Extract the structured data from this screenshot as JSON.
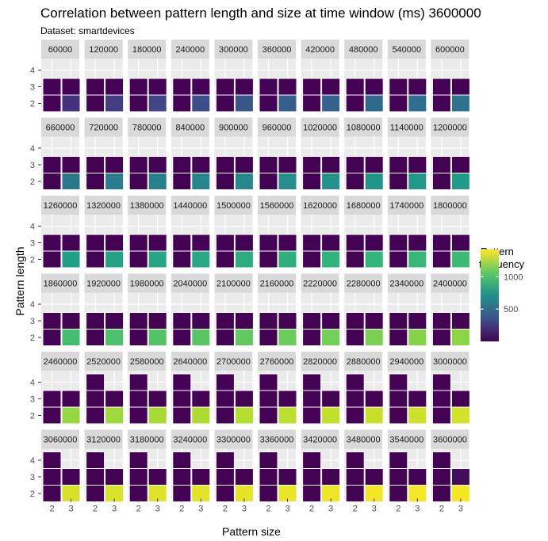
{
  "chart_data": {
    "type": "heatmap",
    "title": "Correlation between pattern length and size at time window (ms) 3600000",
    "subtitle": "Dataset: smartdevices",
    "xlabel": "Pattern size",
    "ylabel": "Pattern length",
    "x_ticks": [
      "2",
      "3"
    ],
    "y_ticks": [
      "2",
      "3",
      "4"
    ],
    "legend": {
      "title": [
        "Pattern",
        "frequency"
      ],
      "ticks": [
        500,
        1000
      ],
      "range": [
        0,
        1420
      ],
      "colormap": "viridis",
      "placement": "right"
    },
    "facets": [
      "60000",
      "120000",
      "180000",
      "240000",
      "300000",
      "360000",
      "420000",
      "480000",
      "540000",
      "600000",
      "660000",
      "720000",
      "780000",
      "840000",
      "900000",
      "960000",
      "1020000",
      "1080000",
      "1140000",
      "1200000",
      "1260000",
      "1320000",
      "1380000",
      "1440000",
      "1500000",
      "1560000",
      "1620000",
      "1680000",
      "1740000",
      "1800000",
      "1860000",
      "1920000",
      "1980000",
      "2040000",
      "2100000",
      "2160000",
      "2220000",
      "2280000",
      "2340000",
      "2400000",
      "2460000",
      "2520000",
      "2580000",
      "2640000",
      "2700000",
      "2760000",
      "2820000",
      "2880000",
      "2940000",
      "3000000",
      "3060000",
      "3120000",
      "3180000",
      "3240000",
      "3300000",
      "3360000",
      "3420000",
      "3480000",
      "3540000",
      "3600000"
    ],
    "cells_note": "per facet: [size, length, frequency]",
    "facet_values": [
      [
        [
          2,
          3,
          5
        ],
        [
          3,
          3,
          5
        ],
        [
          2,
          2,
          5
        ],
        [
          3,
          2,
          200
        ]
      ],
      [
        [
          2,
          3,
          5
        ],
        [
          3,
          3,
          5
        ],
        [
          2,
          2,
          5
        ],
        [
          3,
          2,
          260
        ]
      ],
      [
        [
          2,
          3,
          5
        ],
        [
          3,
          3,
          5
        ],
        [
          2,
          2,
          5
        ],
        [
          3,
          2,
          300
        ]
      ],
      [
        [
          2,
          3,
          5
        ],
        [
          3,
          3,
          5
        ],
        [
          2,
          2,
          5
        ],
        [
          3,
          2,
          340
        ]
      ],
      [
        [
          2,
          3,
          5
        ],
        [
          3,
          3,
          5
        ],
        [
          2,
          2,
          5
        ],
        [
          3,
          2,
          380
        ]
      ],
      [
        [
          2,
          3,
          5
        ],
        [
          3,
          3,
          5
        ],
        [
          2,
          2,
          5
        ],
        [
          3,
          2,
          420
        ]
      ],
      [
        [
          2,
          3,
          5
        ],
        [
          3,
          3,
          5
        ],
        [
          2,
          2,
          5
        ],
        [
          3,
          2,
          450
        ]
      ],
      [
        [
          2,
          3,
          5
        ],
        [
          3,
          3,
          5
        ],
        [
          2,
          2,
          5
        ],
        [
          3,
          2,
          480
        ]
      ],
      [
        [
          2,
          3,
          5
        ],
        [
          3,
          3,
          5
        ],
        [
          2,
          2,
          5
        ],
        [
          3,
          2,
          510
        ]
      ],
      [
        [
          2,
          3,
          5
        ],
        [
          3,
          3,
          5
        ],
        [
          2,
          2,
          5
        ],
        [
          3,
          2,
          540
        ]
      ],
      [
        [
          2,
          3,
          5
        ],
        [
          3,
          3,
          5
        ],
        [
          2,
          2,
          5
        ],
        [
          3,
          2,
          570
        ]
      ],
      [
        [
          2,
          3,
          5
        ],
        [
          3,
          3,
          5
        ],
        [
          2,
          2,
          5
        ],
        [
          3,
          2,
          600
        ]
      ],
      [
        [
          2,
          3,
          5
        ],
        [
          3,
          3,
          5
        ],
        [
          2,
          2,
          5
        ],
        [
          3,
          2,
          620
        ]
      ],
      [
        [
          2,
          3,
          5
        ],
        [
          3,
          3,
          5
        ],
        [
          2,
          2,
          5
        ],
        [
          3,
          2,
          650
        ]
      ],
      [
        [
          2,
          3,
          5
        ],
        [
          3,
          3,
          5
        ],
        [
          2,
          2,
          5
        ],
        [
          3,
          2,
          670
        ]
      ],
      [
        [
          2,
          3,
          5
        ],
        [
          3,
          3,
          5
        ],
        [
          2,
          2,
          5
        ],
        [
          3,
          2,
          700
        ]
      ],
      [
        [
          2,
          3,
          5
        ],
        [
          3,
          3,
          5
        ],
        [
          2,
          2,
          5
        ],
        [
          3,
          2,
          720
        ]
      ],
      [
        [
          2,
          3,
          5
        ],
        [
          3,
          3,
          5
        ],
        [
          2,
          2,
          5
        ],
        [
          3,
          2,
          740
        ]
      ],
      [
        [
          2,
          3,
          5
        ],
        [
          3,
          3,
          5
        ],
        [
          2,
          2,
          5
        ],
        [
          3,
          2,
          760
        ]
      ],
      [
        [
          2,
          3,
          5
        ],
        [
          3,
          3,
          5
        ],
        [
          2,
          2,
          5
        ],
        [
          3,
          2,
          780
        ]
      ],
      [
        [
          2,
          3,
          5
        ],
        [
          3,
          3,
          5
        ],
        [
          2,
          2,
          5
        ],
        [
          3,
          2,
          800
        ]
      ],
      [
        [
          2,
          3,
          5
        ],
        [
          3,
          3,
          5
        ],
        [
          2,
          2,
          5
        ],
        [
          3,
          2,
          820
        ]
      ],
      [
        [
          2,
          3,
          5
        ],
        [
          3,
          3,
          5
        ],
        [
          2,
          2,
          5
        ],
        [
          3,
          2,
          840
        ]
      ],
      [
        [
          2,
          3,
          5
        ],
        [
          3,
          3,
          5
        ],
        [
          2,
          2,
          5
        ],
        [
          3,
          2,
          860
        ]
      ],
      [
        [
          2,
          3,
          5
        ],
        [
          3,
          3,
          5
        ],
        [
          2,
          2,
          5
        ],
        [
          3,
          2,
          880
        ]
      ],
      [
        [
          2,
          3,
          5
        ],
        [
          3,
          3,
          5
        ],
        [
          2,
          2,
          5
        ],
        [
          3,
          2,
          900
        ]
      ],
      [
        [
          2,
          3,
          5
        ],
        [
          3,
          3,
          5
        ],
        [
          2,
          2,
          5
        ],
        [
          3,
          2,
          920
        ]
      ],
      [
        [
          2,
          3,
          5
        ],
        [
          3,
          3,
          5
        ],
        [
          2,
          2,
          5
        ],
        [
          3,
          2,
          935
        ]
      ],
      [
        [
          2,
          3,
          5
        ],
        [
          3,
          3,
          5
        ],
        [
          2,
          2,
          5
        ],
        [
          3,
          2,
          950
        ]
      ],
      [
        [
          2,
          3,
          5
        ],
        [
          3,
          3,
          5
        ],
        [
          2,
          2,
          5
        ],
        [
          3,
          2,
          970
        ]
      ],
      [
        [
          2,
          3,
          5
        ],
        [
          3,
          3,
          5
        ],
        [
          2,
          2,
          5
        ],
        [
          3,
          2,
          990
        ]
      ],
      [
        [
          2,
          3,
          5
        ],
        [
          3,
          3,
          5
        ],
        [
          2,
          2,
          5
        ],
        [
          3,
          2,
          1010
        ]
      ],
      [
        [
          2,
          3,
          5
        ],
        [
          3,
          3,
          5
        ],
        [
          2,
          2,
          5
        ],
        [
          3,
          2,
          1030
        ]
      ],
      [
        [
          2,
          3,
          5
        ],
        [
          3,
          3,
          5
        ],
        [
          2,
          2,
          5
        ],
        [
          3,
          2,
          1050
        ]
      ],
      [
        [
          2,
          3,
          5
        ],
        [
          3,
          3,
          5
        ],
        [
          2,
          2,
          5
        ],
        [
          3,
          2,
          1070
        ]
      ],
      [
        [
          2,
          3,
          5
        ],
        [
          3,
          3,
          5
        ],
        [
          2,
          2,
          5
        ],
        [
          3,
          2,
          1090
        ]
      ],
      [
        [
          2,
          3,
          5
        ],
        [
          3,
          3,
          5
        ],
        [
          2,
          2,
          5
        ],
        [
          3,
          2,
          1110
        ]
      ],
      [
        [
          2,
          3,
          5
        ],
        [
          3,
          3,
          5
        ],
        [
          2,
          2,
          5
        ],
        [
          3,
          2,
          1130
        ]
      ],
      [
        [
          2,
          3,
          5
        ],
        [
          3,
          3,
          5
        ],
        [
          2,
          2,
          5
        ],
        [
          3,
          2,
          1150
        ]
      ],
      [
        [
          2,
          3,
          5
        ],
        [
          3,
          3,
          5
        ],
        [
          2,
          2,
          5
        ],
        [
          3,
          2,
          1170
        ]
      ],
      [
        [
          2,
          3,
          5
        ],
        [
          3,
          3,
          5
        ],
        [
          2,
          2,
          5
        ],
        [
          3,
          2,
          1190
        ]
      ],
      [
        [
          2,
          4,
          5
        ],
        [
          2,
          3,
          5
        ],
        [
          3,
          3,
          5
        ],
        [
          2,
          2,
          5
        ],
        [
          3,
          2,
          1210
        ]
      ],
      [
        [
          2,
          4,
          5
        ],
        [
          2,
          3,
          5
        ],
        [
          3,
          3,
          5
        ],
        [
          2,
          2,
          5
        ],
        [
          3,
          2,
          1230
        ]
      ],
      [
        [
          2,
          4,
          5
        ],
        [
          2,
          3,
          5
        ],
        [
          3,
          3,
          5
        ],
        [
          2,
          2,
          5
        ],
        [
          3,
          2,
          1245
        ]
      ],
      [
        [
          2,
          4,
          5
        ],
        [
          2,
          3,
          5
        ],
        [
          3,
          3,
          5
        ],
        [
          2,
          2,
          5
        ],
        [
          3,
          2,
          1260
        ]
      ],
      [
        [
          2,
          4,
          5
        ],
        [
          2,
          3,
          5
        ],
        [
          3,
          3,
          5
        ],
        [
          2,
          2,
          5
        ],
        [
          3,
          2,
          1275
        ]
      ],
      [
        [
          2,
          4,
          5
        ],
        [
          2,
          3,
          5
        ],
        [
          3,
          3,
          5
        ],
        [
          2,
          2,
          5
        ],
        [
          3,
          2,
          1290
        ]
      ],
      [
        [
          2,
          4,
          5
        ],
        [
          2,
          3,
          5
        ],
        [
          3,
          3,
          5
        ],
        [
          2,
          2,
          5
        ],
        [
          3,
          2,
          1305
        ]
      ],
      [
        [
          2,
          4,
          5
        ],
        [
          2,
          3,
          5
        ],
        [
          3,
          3,
          5
        ],
        [
          2,
          2,
          5
        ],
        [
          3,
          2,
          1315
        ]
      ],
      [
        [
          2,
          4,
          5
        ],
        [
          2,
          3,
          5
        ],
        [
          3,
          3,
          5
        ],
        [
          2,
          2,
          5
        ],
        [
          3,
          2,
          1325
        ]
      ],
      [
        [
          2,
          4,
          5
        ],
        [
          2,
          3,
          5
        ],
        [
          3,
          3,
          5
        ],
        [
          2,
          2,
          5
        ],
        [
          3,
          2,
          1335
        ]
      ],
      [
        [
          2,
          4,
          5
        ],
        [
          2,
          3,
          5
        ],
        [
          3,
          3,
          5
        ],
        [
          2,
          2,
          5
        ],
        [
          3,
          2,
          1345
        ]
      ],
      [
        [
          2,
          4,
          5
        ],
        [
          2,
          3,
          5
        ],
        [
          3,
          3,
          5
        ],
        [
          2,
          2,
          5
        ],
        [
          3,
          2,
          1355
        ]
      ],
      [
        [
          2,
          4,
          5
        ],
        [
          2,
          3,
          5
        ],
        [
          3,
          3,
          5
        ],
        [
          2,
          2,
          5
        ],
        [
          3,
          2,
          1365
        ]
      ],
      [
        [
          2,
          4,
          5
        ],
        [
          2,
          3,
          5
        ],
        [
          3,
          3,
          5
        ],
        [
          2,
          2,
          5
        ],
        [
          3,
          2,
          1372
        ]
      ],
      [
        [
          2,
          4,
          5
        ],
        [
          2,
          3,
          5
        ],
        [
          3,
          3,
          5
        ],
        [
          2,
          2,
          5
        ],
        [
          3,
          2,
          1380
        ]
      ],
      [
        [
          2,
          4,
          5
        ],
        [
          2,
          3,
          5
        ],
        [
          3,
          3,
          5
        ],
        [
          2,
          2,
          5
        ],
        [
          3,
          2,
          1388
        ]
      ],
      [
        [
          2,
          4,
          5
        ],
        [
          2,
          3,
          5
        ],
        [
          3,
          3,
          5
        ],
        [
          2,
          2,
          5
        ],
        [
          3,
          2,
          1395
        ]
      ],
      [
        [
          2,
          4,
          5
        ],
        [
          2,
          3,
          5
        ],
        [
          3,
          3,
          5
        ],
        [
          2,
          2,
          5
        ],
        [
          3,
          2,
          1402
        ]
      ],
      [
        [
          2,
          4,
          5
        ],
        [
          2,
          3,
          5
        ],
        [
          3,
          3,
          40
        ],
        [
          2,
          2,
          5
        ],
        [
          3,
          2,
          1410
        ]
      ]
    ]
  }
}
